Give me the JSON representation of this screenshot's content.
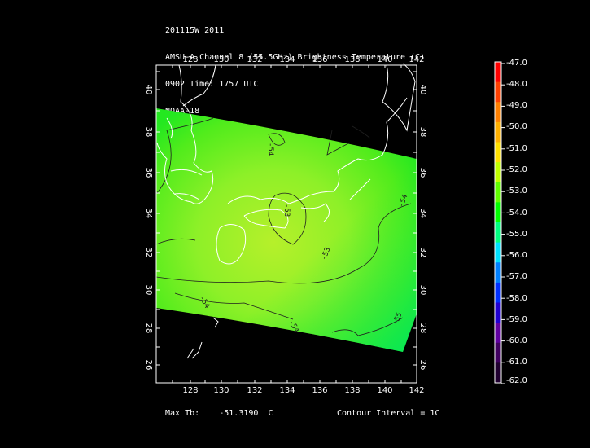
{
  "header": {
    "line1": "201115W 2011",
    "line2": "AMSU-A Channel 8 (55.5GHz) Brightness Temperature (C)",
    "line3": "0902 Time: 1757 UTC",
    "line4": "NOAA-18"
  },
  "map": {
    "lon_ticks": [
      "128",
      "130",
      "132",
      "134",
      "136",
      "138",
      "140",
      "142"
    ],
    "lat_ticks": [
      "40",
      "38",
      "36",
      "34",
      "32",
      "30",
      "28",
      "26"
    ],
    "contour_labels": [
      "-54",
      "-53",
      "-53",
      "-54",
      "-54",
      "-55",
      "-54"
    ]
  },
  "colorbar": {
    "labels": [
      "-47.0",
      "-48.0",
      "-49.0",
      "-50.0",
      "-51.0",
      "-52.0",
      "-53.0",
      "-54.0",
      "-55.0",
      "-56.0",
      "-57.0",
      "-58.0",
      "-59.0",
      "-60.0",
      "-61.0",
      "-62.0"
    ],
    "colors": [
      "#ff0000",
      "#ff4000",
      "#ff8000",
      "#ffb000",
      "#ffe000",
      "#c0ff00",
      "#60ff00",
      "#00ff00",
      "#00ff80",
      "#00e0ff",
      "#0080ff",
      "#0030ff",
      "#2000d0",
      "#6000a0",
      "#400060",
      "#200030"
    ]
  },
  "footer": {
    "max_label": "Max Tb:",
    "max_value": "-51.3190",
    "max_unit": "C",
    "contour": "Contour Interval = 1C"
  }
}
